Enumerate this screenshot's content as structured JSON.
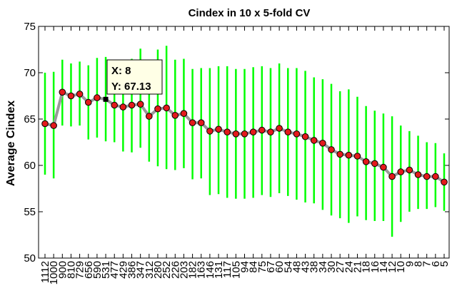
{
  "chart_data": {
    "type": "line",
    "title": "Cindex in 10 x 5-fold CV",
    "xlabel": "",
    "ylabel": "Average Cindex",
    "ylim": [
      50,
      75
    ],
    "yticks": [
      50,
      55,
      60,
      65,
      70,
      75
    ],
    "grid": false,
    "legend": "none",
    "categories": [
      "1112",
      "1000",
      "900",
      "810",
      "729",
      "656",
      "590",
      "531",
      "477",
      "429",
      "386",
      "347",
      "312",
      "280",
      "252",
      "226",
      "203",
      "182",
      "163",
      "146",
      "131",
      "117",
      "105",
      "94",
      "84",
      "75",
      "67",
      "60",
      "54",
      "48",
      "43",
      "38",
      "34",
      "30",
      "27",
      "24",
      "21",
      "18",
      "16",
      "14",
      "12",
      "10",
      "9",
      "8",
      "7",
      "6",
      "5"
    ],
    "series": [
      {
        "values": [
          64.5,
          64.3,
          67.9,
          67.5,
          67.7,
          66.8,
          67.3,
          67.13,
          66.5,
          66.3,
          66.5,
          66.6,
          65.3,
          66.1,
          66.2,
          65.4,
          65.6,
          64.6,
          64.6,
          63.7,
          63.9,
          63.6,
          63.4,
          63.4,
          63.6,
          63.8,
          63.6,
          64.0,
          63.6,
          63.4,
          63.1,
          62.7,
          62.4,
          61.7,
          61.2,
          61.1,
          61.0,
          60.4,
          60.2,
          59.8,
          58.8,
          59.3,
          59.5,
          59.0,
          58.8,
          58.8,
          58.2
        ],
        "error_low": [
          59.0,
          58.6,
          64.3,
          64.2,
          64.3,
          62.8,
          63.0,
          62.6,
          62.5,
          61.5,
          61.4,
          61.9,
          60.4,
          59.9,
          59.6,
          59.5,
          59.7,
          58.5,
          58.6,
          56.8,
          56.9,
          56.5,
          56.4,
          56.4,
          56.5,
          56.8,
          56.6,
          57.0,
          56.7,
          56.3,
          56.0,
          55.9,
          55.2,
          54.6,
          54.3,
          53.8,
          54.5,
          54.1,
          54.0,
          54.0,
          52.3,
          53.9,
          55.0,
          55.3,
          55.3,
          55.5,
          55.1
        ],
        "error_high": [
          70.0,
          70.1,
          71.4,
          71.0,
          71.2,
          70.8,
          71.6,
          71.7,
          70.5,
          71.2,
          71.5,
          72.6,
          70.8,
          72.5,
          72.9,
          71.4,
          71.5,
          70.4,
          70.5,
          70.5,
          70.7,
          70.7,
          70.4,
          70.4,
          70.6,
          70.7,
          70.5,
          71.0,
          70.5,
          70.5,
          70.2,
          69.5,
          69.3,
          68.8,
          68.0,
          68.2,
          67.4,
          66.4,
          65.9,
          65.6,
          65.3,
          64.3,
          63.7,
          63.2,
          62.5,
          62.4,
          61.3
        ]
      }
    ],
    "colors": {
      "marker": "#e31a1c",
      "line": "#9a9a9a",
      "errorbar": "#00ff00",
      "tip_bg": "#ffffe6"
    }
  },
  "datatip": {
    "x_text": "X: 8",
    "y_text": "Y: 67.13",
    "index": 7
  }
}
